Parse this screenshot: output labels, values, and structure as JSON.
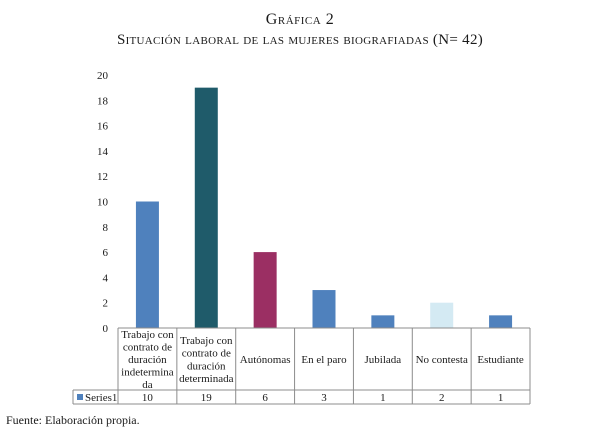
{
  "title": {
    "line1": "Gráfica 2",
    "line2": "Situación laboral de las mujeres biografiadas (N= 42)"
  },
  "chart_data": {
    "type": "bar",
    "title": "Situación laboral de las mujeres biografiadas (N= 42)",
    "categories": [
      [
        "Trabajo con",
        "contrato de",
        "duración",
        "indetermina",
        "da"
      ],
      [
        "Trabajo con",
        "contrato de",
        "duración",
        "determinada"
      ],
      [
        "Autónomas"
      ],
      [
        "En el paro"
      ],
      [
        "Jubilada"
      ],
      [
        "No contesta"
      ],
      [
        "Estudiante"
      ]
    ],
    "series": [
      {
        "name": "Series1",
        "values": [
          10,
          19,
          6,
          3,
          1,
          2,
          1
        ],
        "colors": [
          "#4f81bd",
          "#1f5b6a",
          "#9b2f63",
          "#4f81bd",
          "#4f81bd",
          "#d4eaf3",
          "#4f81bd"
        ]
      }
    ],
    "legend_color": "#4f81bd",
    "ylim": [
      0,
      20
    ],
    "yticks": [
      0,
      2,
      4,
      6,
      8,
      10,
      12,
      14,
      16,
      18,
      20
    ],
    "grid": false,
    "data_table": true
  },
  "source": "Fuente: Elaboración propia."
}
